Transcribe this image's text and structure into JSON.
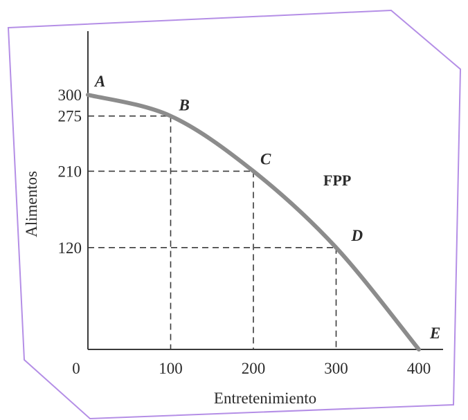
{
  "chart_data": {
    "type": "line",
    "title": "",
    "xlabel": "Entretenimiento",
    "ylabel": "Alimentos",
    "x_ticks": [
      "0",
      "100",
      "200",
      "300",
      "400"
    ],
    "y_ticks": [
      "120",
      "210",
      "275",
      "300"
    ],
    "xlim": [
      0,
      400
    ],
    "ylim": [
      0,
      300
    ],
    "grid": false,
    "curve_label": "FPP",
    "points": [
      {
        "label": "A",
        "x": 0,
        "y": 300
      },
      {
        "label": "B",
        "x": 100,
        "y": 275
      },
      {
        "label": "C",
        "x": 200,
        "y": 210
      },
      {
        "label": "D",
        "x": 300,
        "y": 120
      },
      {
        "label": "E",
        "x": 400,
        "y": 0
      }
    ],
    "colors": {
      "curve": "#8c8c8c",
      "axes": "#3a3a3a",
      "guides": "#3a3a3a",
      "frame": "#b48ee6"
    }
  }
}
